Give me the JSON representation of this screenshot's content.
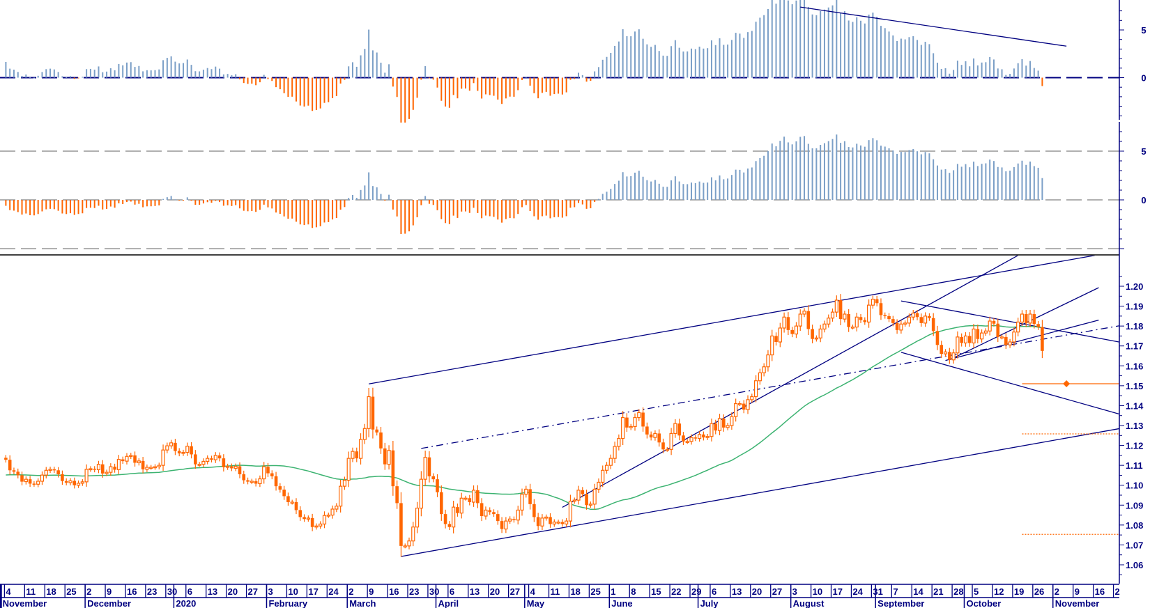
{
  "chart_data": {
    "type": "candlestick",
    "start_date": "2019-11-04",
    "colors": {
      "candle": "#FF6600",
      "moving_average": "#3CB371",
      "trendline": "#000080",
      "hist_positive": "#7B9FC7",
      "hist_negative": "#FF6600",
      "zero_line_panel1": "#000080",
      "zero_line_panel2": "#808080"
    },
    "price_axis": {
      "min": 1.055,
      "max": 1.2165,
      "tick_labels": [
        "1.06",
        "1.07",
        "1.08",
        "1.09",
        "1.10",
        "1.11",
        "1.12",
        "1.13",
        "1.14",
        "1.15",
        "1.16",
        "1.17",
        "1.18",
        "1.19",
        "1.20"
      ]
    },
    "closes": [
      1.1128,
      1.1075,
      1.1068,
      1.105,
      1.1018,
      1.103,
      1.1008,
      1.1005,
      1.102,
      1.1051,
      1.1075,
      1.108,
      1.1075,
      1.1055,
      1.1021,
      1.1013,
      1.1022,
      1.1,
      1.101,
      1.1017,
      1.108,
      1.1083,
      1.1078,
      1.1105,
      1.1059,
      1.1065,
      1.1093,
      1.1078,
      1.113,
      1.1121,
      1.1145,
      1.115,
      1.1113,
      1.1122,
      1.108,
      1.109,
      1.109,
      1.1093,
      1.11,
      1.1177,
      1.1198,
      1.1213,
      1.1172,
      1.116,
      1.1165,
      1.1196,
      1.1155,
      1.1105,
      1.1105,
      1.112,
      1.1135,
      1.1128,
      1.115,
      1.1135,
      1.109,
      1.1095,
      1.1085,
      1.1095,
      1.1055,
      1.1025,
      1.1018,
      1.102,
      1.1008,
      1.1032,
      1.1093,
      1.106,
      1.1045,
      1.0995,
      1.0978,
      1.0945,
      1.0915,
      1.0915,
      1.0875,
      1.084,
      1.083,
      1.0835,
      1.079,
      1.0795,
      1.0805,
      1.0848,
      1.085,
      1.088,
      1.0895,
      1.0995,
      1.1025,
      1.1135,
      1.117,
      1.1135,
      1.123,
      1.1285,
      1.1445,
      1.128,
      1.1265,
      1.1185,
      1.1105,
      1.1175,
      1.0995,
      1.091,
      1.0695,
      1.0695,
      1.072,
      1.079,
      1.0885,
      1.103,
      1.114,
      1.1045,
      1.103,
      1.0965,
      1.0855,
      1.0805,
      1.079,
      1.089,
      1.086,
      1.0935,
      1.0935,
      1.0915,
      1.0975,
      1.091,
      1.0845,
      1.0875,
      1.0865,
      1.0855,
      1.082,
      1.078,
      1.082,
      1.083,
      1.0825,
      1.0875,
      1.0955,
      1.098,
      1.0905,
      1.084,
      1.0795,
      1.0835,
      1.084,
      1.0805,
      1.0815,
      1.0815,
      1.0805,
      1.082,
      1.092,
      1.0925,
      1.0975,
      1.0955,
      1.09,
      1.0905,
      1.098,
      1.1015,
      1.1075,
      1.11,
      1.1135,
      1.1195,
      1.1235,
      1.134,
      1.129,
      1.1295,
      1.134,
      1.1365,
      1.1295,
      1.1255,
      1.124,
      1.126,
      1.1215,
      1.118,
      1.118,
      1.126,
      1.131,
      1.125,
      1.122,
      1.122,
      1.124,
      1.1235,
      1.1255,
      1.124,
      1.1245,
      1.131,
      1.1275,
      1.1335,
      1.129,
      1.13,
      1.1345,
      1.141,
      1.141,
      1.138,
      1.143,
      1.1445,
      1.1525,
      1.1565,
      1.1595,
      1.1655,
      1.175,
      1.172,
      1.179,
      1.1845,
      1.178,
      1.176,
      1.18,
      1.186,
      1.1875,
      1.1785,
      1.1735,
      1.174,
      1.1785,
      1.181,
      1.184,
      1.187,
      1.193,
      1.1835,
      1.186,
      1.1795,
      1.1795,
      1.1845,
      1.183,
      1.182,
      1.1905,
      1.1935,
      1.1915,
      1.1855,
      1.185,
      1.1835,
      1.1815,
      1.178,
      1.181,
      1.1815,
      1.1845,
      1.1865,
      1.1845,
      1.1815,
      1.185,
      1.184,
      1.1775,
      1.1705,
      1.166,
      1.167,
      1.163,
      1.1665,
      1.1745,
      1.1715,
      1.175,
      1.1715,
      1.1785,
      1.1735,
      1.1765,
      1.1775,
      1.1825,
      1.1812,
      1.1745,
      1.1745,
      1.1705,
      1.172,
      1.177,
      1.182,
      1.186,
      1.1815,
      1.186,
      1.181,
      1.1795,
      1.1675
    ],
    "trendlines": [
      {
        "from": {
          "date": "2020-03-09",
          "price": 1.1509
        },
        "to": {
          "date": "2020-11-16",
          "price": 1.2155
        },
        "style": "solid"
      },
      {
        "from": {
          "date": "2020-03-19",
          "price": 1.0642
        },
        "to": {
          "date": "2020-11-24",
          "price": 1.1284
        },
        "style": "solid"
      },
      {
        "from": {
          "date": "2020-03-26",
          "price": 1.1185
        },
        "to": {
          "date": "2020-11-24",
          "price": 1.1801
        },
        "style": "dashdot"
      },
      {
        "from": {
          "date": "2020-05-14",
          "price": 1.0889
        },
        "to": {
          "date": "2020-10-20",
          "price": 1.2155
        },
        "style": "solid"
      },
      {
        "from": {
          "date": "2020-09-09",
          "price": 1.1926
        },
        "to": {
          "date": "2020-11-24",
          "price": 1.172
        },
        "style": "solid"
      },
      {
        "from": {
          "date": "2020-09-09",
          "price": 1.1668
        },
        "to": {
          "date": "2020-11-24",
          "price": 1.1358
        },
        "style": "solid"
      },
      {
        "from": {
          "date": "2020-09-24",
          "price": 1.1627
        },
        "to": {
          "date": "2020-11-17",
          "price": 1.183
        },
        "style": "solid"
      },
      {
        "from": {
          "date": "2020-09-25",
          "price": 1.163
        },
        "to": {
          "date": "2020-11-17",
          "price": 1.1993
        },
        "style": "solid"
      }
    ],
    "target_levels": [
      {
        "price": 1.151,
        "from": "2020-10-21",
        "to": "2020-11-24",
        "style": "solid",
        "marker_date": "2020-11-05"
      },
      {
        "price": 1.1258,
        "from": "2020-10-21",
        "to": "2020-11-24",
        "style": "dotted"
      },
      {
        "price": 1.0753,
        "from": "2020-10-21",
        "to": "2020-11-24",
        "style": "dotted"
      }
    ],
    "panel1": {
      "tick_labels": [
        "5",
        "0"
      ],
      "trendline": {
        "from": {
          "date": "2020-08-05",
          "value": 7.4
        },
        "to": {
          "date": "2020-11-05",
          "value": 3.3
        }
      }
    },
    "panel2": {
      "tick_labels": [
        "5",
        "0"
      ]
    },
    "x_axis": {
      "week_labels": [
        "4",
        "11",
        "18",
        "25",
        "2",
        "9",
        "16",
        "23",
        "30",
        "6",
        "13",
        "20",
        "27",
        "3",
        "10",
        "17",
        "24",
        "2",
        "9",
        "16",
        "23",
        "30",
        "6",
        "13",
        "20",
        "27",
        "4",
        "11",
        "18",
        "25",
        "1",
        "8",
        "15",
        "22",
        "29",
        "6",
        "13",
        "20",
        "27",
        "3",
        "10",
        "17",
        "24",
        "31",
        "7",
        "14",
        "21",
        "28",
        "5",
        "12",
        "19",
        "26",
        "2",
        "9",
        "16",
        "2"
      ],
      "months": [
        {
          "label": "November",
          "date": "2019-11-01"
        },
        {
          "label": "December",
          "date": "2019-12-02"
        },
        {
          "label": "2020",
          "date": "2020-01-01"
        },
        {
          "label": "February",
          "date": "2020-02-03"
        },
        {
          "label": "March",
          "date": "2020-03-02"
        },
        {
          "label": "April",
          "date": "2020-04-01"
        },
        {
          "label": "May",
          "date": "2020-05-01"
        },
        {
          "label": "June",
          "date": "2020-06-01"
        },
        {
          "label": "July",
          "date": "2020-07-01"
        },
        {
          "label": "August",
          "date": "2020-08-03"
        },
        {
          "label": "September",
          "date": "2020-09-01"
        },
        {
          "label": "October",
          "date": "2020-10-01"
        },
        {
          "label": "November",
          "date": "2020-11-02"
        }
      ]
    }
  }
}
